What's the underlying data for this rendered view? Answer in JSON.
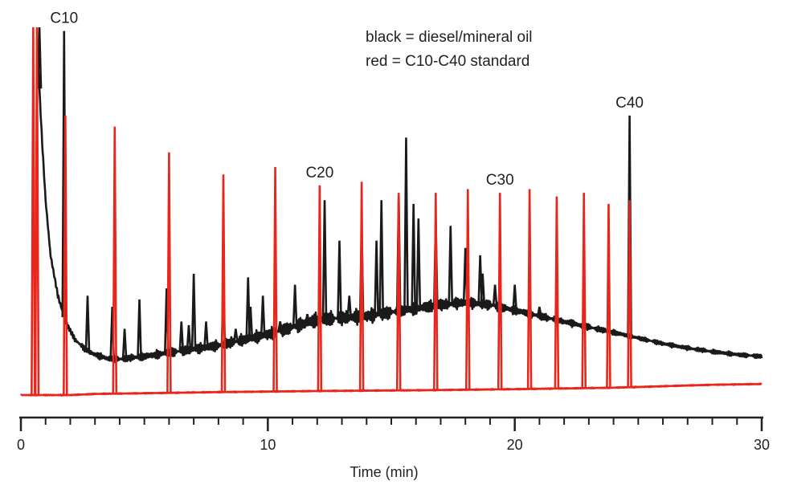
{
  "chart_data": {
    "type": "line",
    "title": "",
    "xlabel": "Time (min)",
    "ylabel": "",
    "xlim": [
      0,
      30
    ],
    "ylim": [
      0,
      100
    ],
    "x_ticks": [
      0,
      10,
      20,
      30
    ],
    "minor_tick_step": 1,
    "legend": [
      "black = diesel/mineral oil",
      "red = C10-C40 standard"
    ],
    "colors": {
      "black": "#1a1a1a",
      "red": "#e8261c",
      "axis": "#231f20"
    },
    "annotations": [
      {
        "text": "C10",
        "x": 1.75
      },
      {
        "text": "C20",
        "x": 12.1
      },
      {
        "text": "C30",
        "x": 19.4
      },
      {
        "text": "C40",
        "x": 24.65
      }
    ],
    "series": [
      {
        "name": "diesel/mineral oil",
        "color": "black",
        "baseline": [
          [
            0.7,
            90
          ],
          [
            0.85,
            70
          ],
          [
            1.0,
            53
          ],
          [
            1.2,
            38
          ],
          [
            1.5,
            27
          ],
          [
            1.8,
            20
          ],
          [
            2.2,
            15
          ],
          [
            2.6,
            12.5
          ],
          [
            3.0,
            11
          ],
          [
            3.5,
            10
          ],
          [
            4.0,
            9.8
          ],
          [
            5.0,
            10.5
          ],
          [
            6.0,
            11.5
          ],
          [
            7.0,
            12.5
          ],
          [
            8.0,
            13.5
          ],
          [
            9.0,
            15
          ],
          [
            10.0,
            16.5
          ],
          [
            11.0,
            18.5
          ],
          [
            12.0,
            20.5
          ],
          [
            13.0,
            21
          ],
          [
            14.0,
            21.5
          ],
          [
            15.0,
            22.5
          ],
          [
            16.0,
            23.5
          ],
          [
            17.0,
            24.5
          ],
          [
            18.0,
            25.2
          ],
          [
            19.0,
            24.5
          ],
          [
            20.0,
            23
          ],
          [
            21.0,
            21.5
          ],
          [
            22.0,
            20
          ],
          [
            23.0,
            18.5
          ],
          [
            24.0,
            17
          ],
          [
            25.0,
            15.5
          ],
          [
            26.0,
            14
          ],
          [
            27.0,
            12.8
          ],
          [
            28.0,
            11.8
          ],
          [
            29.0,
            11
          ],
          [
            30.0,
            10.5
          ]
        ],
        "peaks": [
          {
            "x": 0.75,
            "y": 100
          },
          {
            "x": 1.75,
            "y": 99
          },
          {
            "x": 2.7,
            "y": 27
          },
          {
            "x": 3.7,
            "y": 24
          },
          {
            "x": 4.2,
            "y": 18
          },
          {
            "x": 4.8,
            "y": 26
          },
          {
            "x": 5.9,
            "y": 29
          },
          {
            "x": 6.5,
            "y": 20
          },
          {
            "x": 6.8,
            "y": 19
          },
          {
            "x": 7.0,
            "y": 33
          },
          {
            "x": 7.5,
            "y": 20
          },
          {
            "x": 8.2,
            "y": 28
          },
          {
            "x": 8.7,
            "y": 18
          },
          {
            "x": 9.2,
            "y": 32
          },
          {
            "x": 9.3,
            "y": 24
          },
          {
            "x": 9.8,
            "y": 27
          },
          {
            "x": 10.5,
            "y": 20
          },
          {
            "x": 11.1,
            "y": 30
          },
          {
            "x": 11.6,
            "y": 22
          },
          {
            "x": 12.3,
            "y": 53
          },
          {
            "x": 12.9,
            "y": 42
          },
          {
            "x": 13.3,
            "y": 27
          },
          {
            "x": 13.8,
            "y": 46
          },
          {
            "x": 14.4,
            "y": 42
          },
          {
            "x": 14.6,
            "y": 53
          },
          {
            "x": 15.3,
            "y": 54
          },
          {
            "x": 15.6,
            "y": 70
          },
          {
            "x": 15.9,
            "y": 52
          },
          {
            "x": 16.1,
            "y": 48
          },
          {
            "x": 16.8,
            "y": 48
          },
          {
            "x": 17.4,
            "y": 46
          },
          {
            "x": 18.0,
            "y": 40
          },
          {
            "x": 18.6,
            "y": 38
          },
          {
            "x": 18.7,
            "y": 33
          },
          {
            "x": 19.2,
            "y": 30
          },
          {
            "x": 20.0,
            "y": 30
          },
          {
            "x": 21.0,
            "y": 24
          },
          {
            "x": 22.0,
            "y": 20
          },
          {
            "x": 24.65,
            "y": 76
          }
        ]
      },
      {
        "name": "C10-C40 standard",
        "color": "red",
        "baseline": [
          [
            0,
            0
          ],
          [
            2,
            0
          ],
          [
            3,
            0.3
          ],
          [
            5,
            0.5
          ],
          [
            8,
            0.8
          ],
          [
            12,
            1.1
          ],
          [
            16,
            1.3
          ],
          [
            20,
            1.6
          ],
          [
            24,
            2
          ],
          [
            26,
            2.4
          ],
          [
            28,
            2.8
          ],
          [
            30,
            3
          ]
        ],
        "peaks": [
          {
            "x": 0.5,
            "y": 100
          },
          {
            "x": 0.65,
            "y": 100
          },
          {
            "x": 1.8,
            "y": 76
          },
          {
            "x": 3.8,
            "y": 73
          },
          {
            "x": 6.0,
            "y": 66
          },
          {
            "x": 8.2,
            "y": 60
          },
          {
            "x": 10.3,
            "y": 62
          },
          {
            "x": 12.1,
            "y": 57
          },
          {
            "x": 13.8,
            "y": 58
          },
          {
            "x": 15.3,
            "y": 55
          },
          {
            "x": 16.8,
            "y": 55
          },
          {
            "x": 18.1,
            "y": 56
          },
          {
            "x": 19.4,
            "y": 55
          },
          {
            "x": 20.6,
            "y": 56
          },
          {
            "x": 21.7,
            "y": 54
          },
          {
            "x": 22.8,
            "y": 55
          },
          {
            "x": 23.8,
            "y": 52
          },
          {
            "x": 24.65,
            "y": 53
          }
        ]
      }
    ]
  }
}
